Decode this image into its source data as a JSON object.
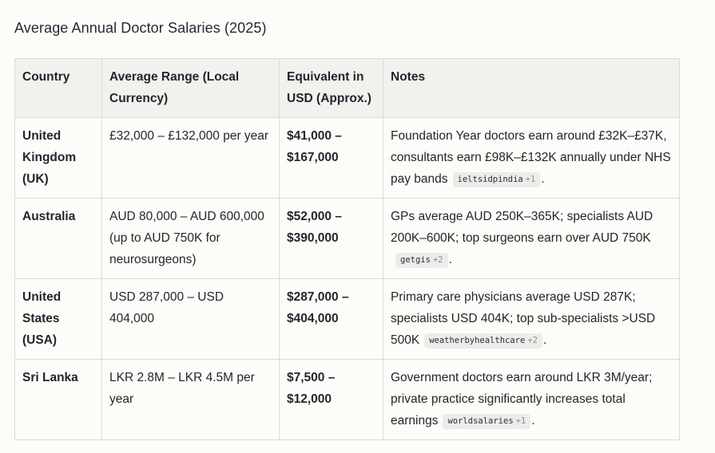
{
  "title": "Average Annual Doctor Salaries (2025)",
  "table": {
    "headers": {
      "country": "Country",
      "range": "Average Range (Local Currency)",
      "usd": "Equivalent in USD (Approx.)",
      "notes": "Notes"
    },
    "rows": [
      {
        "country": "United Kingdom (UK)",
        "range": "£32,000 – £132,000 per year",
        "usd": "$41,000 – $167,000",
        "notes": "Foundation Year doctors earn around £32K–£37K, consultants earn £98K–£132K annually under NHS pay bands",
        "source": "ieltsidpindia",
        "source_more": "+1"
      },
      {
        "country": "Australia",
        "range": "AUD 80,000 – AUD 600,000 (up to AUD 750K for neurosurgeons)",
        "usd": "$52,000 – $390,000",
        "notes": "GPs average AUD 250K–365K; specialists AUD 200K–600K; top surgeons earn over AUD 750K",
        "source": "getgis",
        "source_more": "+2"
      },
      {
        "country": "United States (USA)",
        "range": "USD 287,000 – USD 404,000",
        "usd": "$287,000 – $404,000",
        "notes": "Primary care physicians average USD 287K; specialists USD 404K; top sub-specialists >USD 500K",
        "source": "weatherbyhealthcare",
        "source_more": "+2"
      },
      {
        "country": "Sri Lanka",
        "range": "LKR 2.8M – LKR 4.5M per year",
        "usd": "$7,500 – $12,000",
        "notes": "Government doctors earn around LKR 3M/year; private practice significantly increases total earnings",
        "source": "worldsalaries",
        "source_more": "+1"
      }
    ]
  }
}
